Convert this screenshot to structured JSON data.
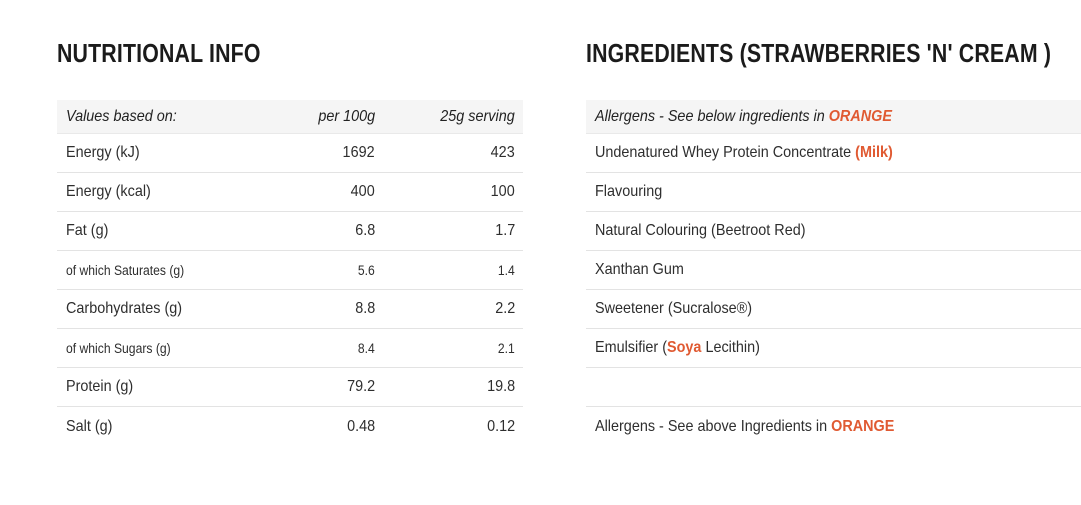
{
  "colors": {
    "orange": "#e05a32",
    "text": "#2e2e2e",
    "header_bg": "#f5f5f5",
    "divider": "#e3e3e3"
  },
  "nutrition": {
    "title": "NUTRITIONAL INFO",
    "header": {
      "col1": "Values based on:",
      "col2": "per 100g",
      "col3": "25g serving"
    },
    "rows": [
      {
        "label": "Energy (kJ)",
        "per100": "1692",
        "serving": "423",
        "sub": false
      },
      {
        "label": "Energy (kcal)",
        "per100": "400",
        "serving": "100",
        "sub": false
      },
      {
        "label": "Fat (g)",
        "per100": "6.8",
        "serving": "1.7",
        "sub": false
      },
      {
        "label": "of which Saturates (g)",
        "per100": "5.6",
        "serving": "1.4",
        "sub": true
      },
      {
        "label": "Carbohydrates (g)",
        "per100": "8.8",
        "serving": "2.2",
        "sub": false
      },
      {
        "label": "of which Sugars (g)",
        "per100": "8.4",
        "serving": "2.1",
        "sub": true
      },
      {
        "label": "Protein (g)",
        "per100": "79.2",
        "serving": "19.8",
        "sub": false
      },
      {
        "label": "Salt (g)",
        "per100": "0.48",
        "serving": "0.12",
        "sub": false
      }
    ]
  },
  "ingredients": {
    "title": "INGREDIENTS (STRAWBERRIES 'N' CREAM )",
    "allergens_top": [
      {
        "t": "Allergens - See below ingredients in ",
        "o": false
      },
      {
        "t": "ORANGE",
        "o": true
      }
    ],
    "items": [
      [
        {
          "t": "Undenatured Whey Protein Concentrate ",
          "o": false
        },
        {
          "t": "(Milk)",
          "o": true
        }
      ],
      [
        {
          "t": "Flavouring",
          "o": false
        }
      ],
      [
        {
          "t": "Natural Colouring (Beetroot Red)",
          "o": false
        }
      ],
      [
        {
          "t": "Xanthan Gum",
          "o": false
        }
      ],
      [
        {
          "t": "Sweetener (Sucralose®)",
          "o": false
        }
      ],
      [
        {
          "t": "Emulsifier (",
          "o": false
        },
        {
          "t": "Soya",
          "o": true
        },
        {
          "t": " Lecithin)",
          "o": false
        }
      ]
    ],
    "allergens_bottom": [
      {
        "t": "Allergens - See above Ingredients in ",
        "o": false
      },
      {
        "t": "ORANGE",
        "o": true
      }
    ]
  }
}
